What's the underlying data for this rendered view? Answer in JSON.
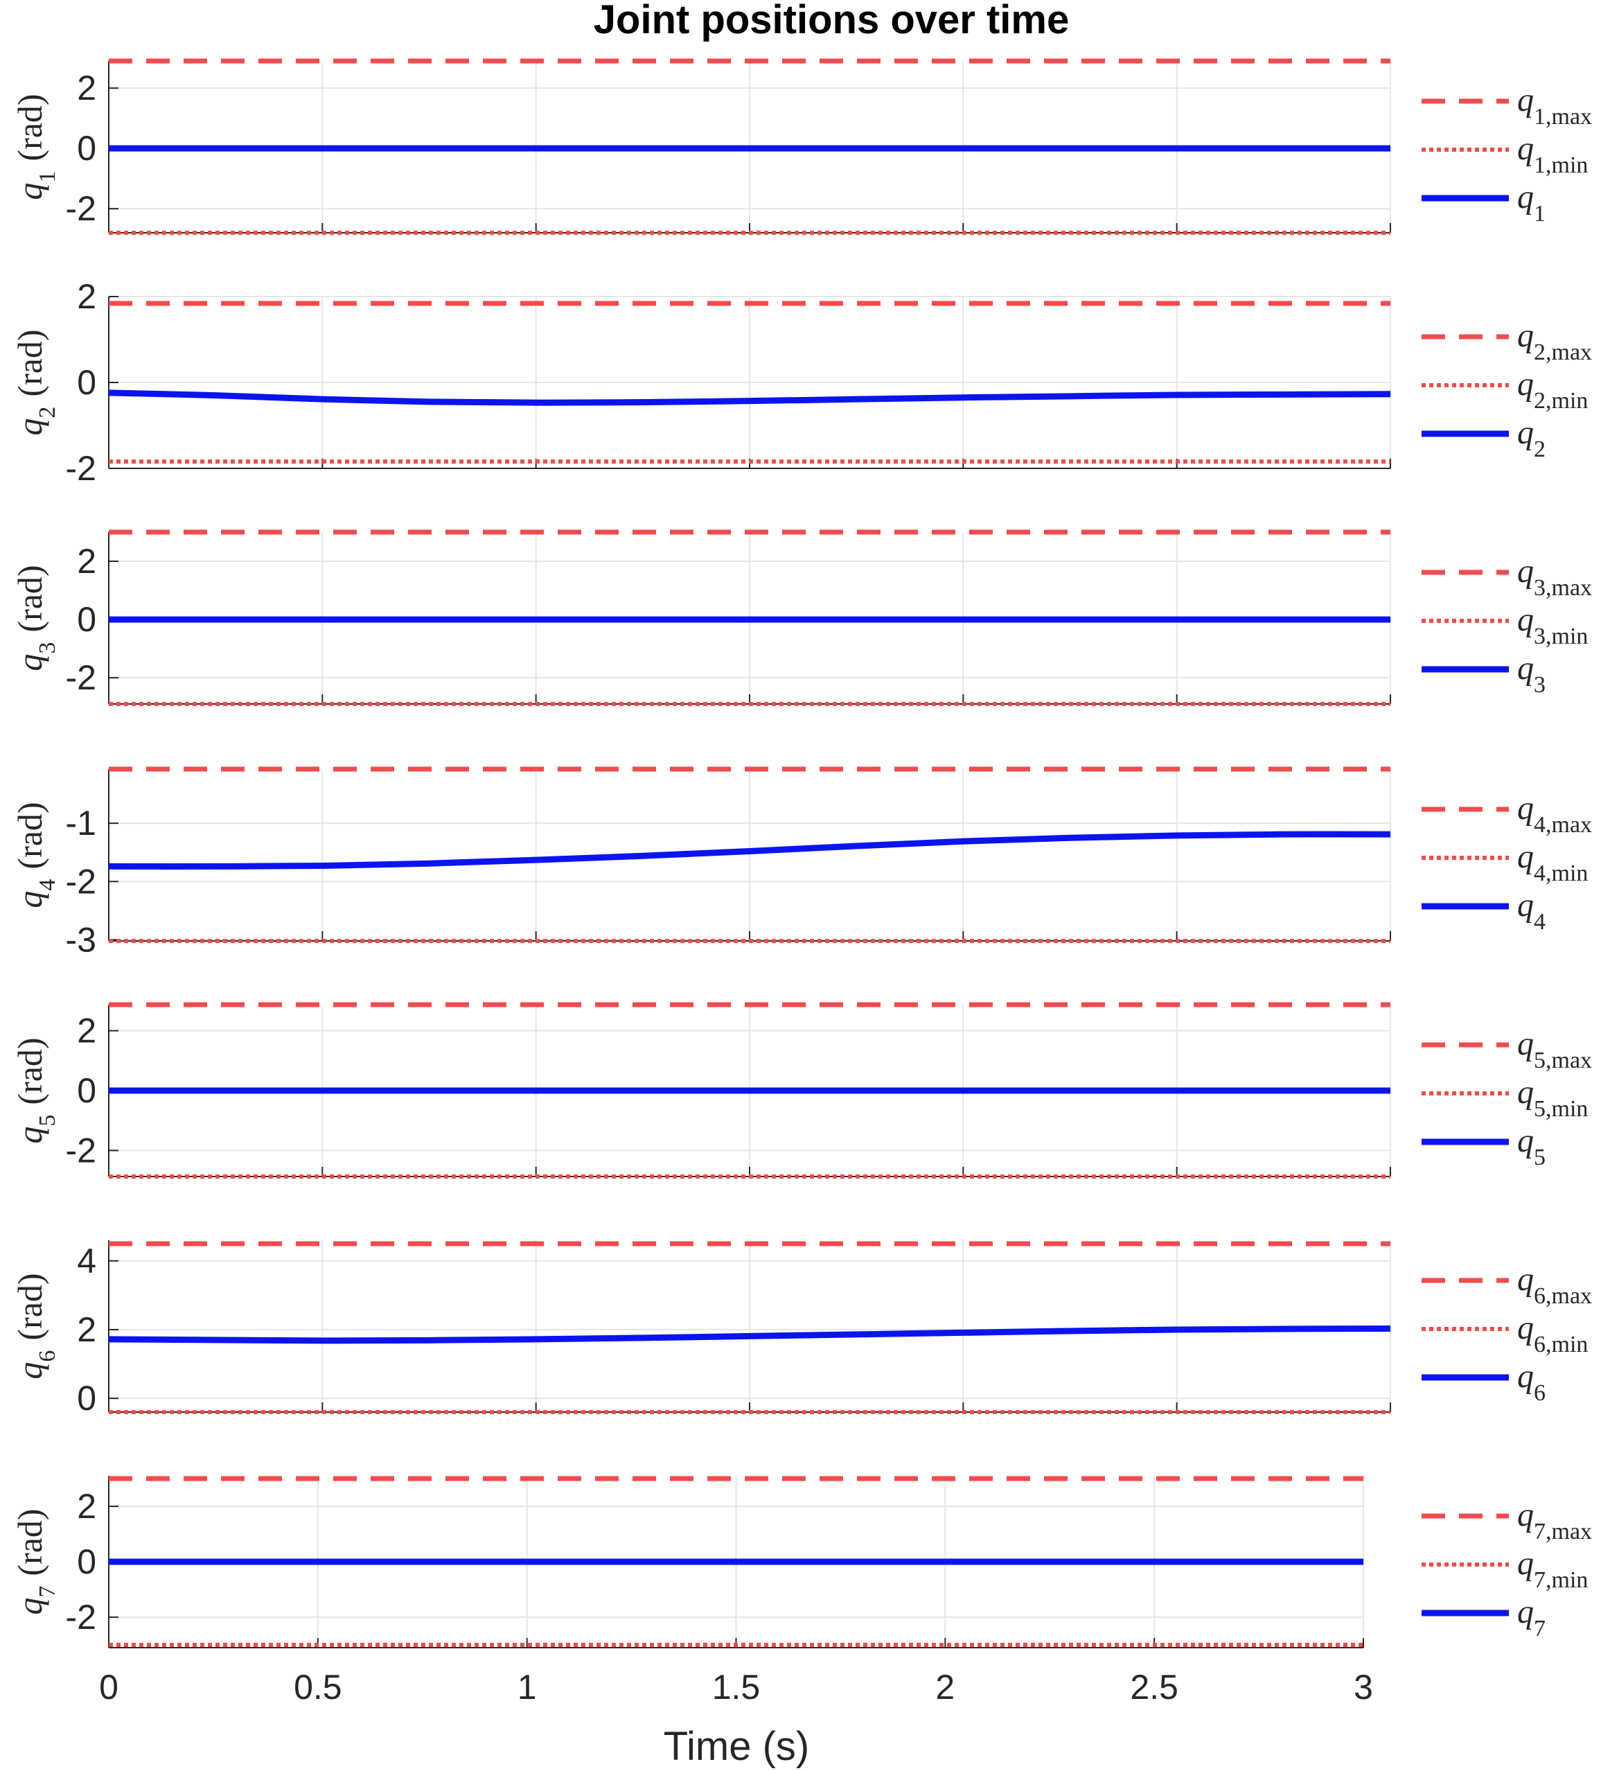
{
  "chart_data": {
    "type": "line",
    "title": "Joint positions over time",
    "xlabel": "Time (s)",
    "xlim": [
      0,
      3
    ],
    "xticks": [
      "0",
      "0.5",
      "1",
      "1.5",
      "2",
      "2.5",
      "3"
    ],
    "x": [
      0,
      0.25,
      0.5,
      0.75,
      1.0,
      1.25,
      1.5,
      1.75,
      2.0,
      2.25,
      2.5,
      2.75,
      3.0
    ],
    "subplots": [
      {
        "ylabel": {
          "var": "q",
          "sub": "1",
          "unit": "(rad)"
        },
        "ylim": [
          -2.8,
          2.9
        ],
        "yticks": [
          {
            "v": -2,
            "label": "-2"
          },
          {
            "v": 0,
            "label": "0"
          },
          {
            "v": 2,
            "label": "2"
          }
        ],
        "q_max": 2.9,
        "q_min": -2.8,
        "values": [
          0,
          0,
          0,
          0,
          0,
          0,
          0,
          0,
          0,
          0,
          0,
          0,
          0
        ],
        "legend": [
          {
            "var": "q",
            "sub": "1,max",
            "style": "dashed"
          },
          {
            "var": "q",
            "sub": "1,min",
            "style": "dotted"
          },
          {
            "var": "q",
            "sub": "1",
            "style": "solid"
          }
        ]
      },
      {
        "ylabel": {
          "var": "q",
          "sub": "2",
          "unit": "(rad)"
        },
        "ylim": [
          -2,
          2
        ],
        "yticks": [
          {
            "v": -2,
            "label": "-2"
          },
          {
            "v": 0,
            "label": "0"
          },
          {
            "v": 2,
            "label": "2"
          }
        ],
        "q_max": 1.84,
        "q_min": -1.84,
        "values": [
          -0.24,
          -0.3,
          -0.39,
          -0.45,
          -0.47,
          -0.46,
          -0.43,
          -0.39,
          -0.35,
          -0.32,
          -0.29,
          -0.28,
          -0.27
        ],
        "legend": [
          {
            "var": "q",
            "sub": "2,max",
            "style": "dashed"
          },
          {
            "var": "q",
            "sub": "2,min",
            "style": "dotted"
          },
          {
            "var": "q",
            "sub": "2",
            "style": "solid"
          }
        ]
      },
      {
        "ylabel": {
          "var": "q",
          "sub": "3",
          "unit": "(rad)"
        },
        "ylim": [
          -2.9,
          3.0
        ],
        "yticks": [
          {
            "v": -2,
            "label": "-2"
          },
          {
            "v": 0,
            "label": "0"
          },
          {
            "v": 2,
            "label": "2"
          }
        ],
        "q_max": 3.0,
        "q_min": -2.9,
        "values": [
          0,
          0,
          0,
          0,
          0,
          0,
          0,
          0,
          0,
          0,
          0,
          0,
          0
        ],
        "legend": [
          {
            "var": "q",
            "sub": "3,max",
            "style": "dashed"
          },
          {
            "var": "q",
            "sub": "3,min",
            "style": "dotted"
          },
          {
            "var": "q",
            "sub": "3",
            "style": "solid"
          }
        ]
      },
      {
        "ylabel": {
          "var": "q",
          "sub": "4",
          "unit": "(rad)"
        },
        "ylim": [
          -3.02,
          -0.07
        ],
        "yticks": [
          {
            "v": -3,
            "label": "-3"
          },
          {
            "v": -2,
            "label": "-2"
          },
          {
            "v": -1,
            "label": "-1"
          }
        ],
        "q_max": -0.07,
        "q_min": -3.02,
        "values": [
          -1.74,
          -1.74,
          -1.73,
          -1.69,
          -1.63,
          -1.56,
          -1.48,
          -1.39,
          -1.31,
          -1.25,
          -1.21,
          -1.19,
          -1.19
        ],
        "legend": [
          {
            "var": "q",
            "sub": "4,max",
            "style": "dashed"
          },
          {
            "var": "q",
            "sub": "4,min",
            "style": "dotted"
          },
          {
            "var": "q",
            "sub": "4",
            "style": "solid"
          }
        ]
      },
      {
        "ylabel": {
          "var": "q",
          "sub": "5",
          "unit": "(rad)"
        },
        "ylim": [
          -2.87,
          2.87
        ],
        "yticks": [
          {
            "v": -2,
            "label": "-2"
          },
          {
            "v": 0,
            "label": "0"
          },
          {
            "v": 2,
            "label": "2"
          }
        ],
        "q_max": 2.87,
        "q_min": -2.87,
        "values": [
          0,
          0,
          0,
          0,
          0,
          0,
          0,
          0,
          0,
          0,
          0,
          0,
          0
        ],
        "legend": [
          {
            "var": "q",
            "sub": "5,max",
            "style": "dashed"
          },
          {
            "var": "q",
            "sub": "5,min",
            "style": "dotted"
          },
          {
            "var": "q",
            "sub": "5",
            "style": "solid"
          }
        ]
      },
      {
        "ylabel": {
          "var": "q",
          "sub": "6",
          "unit": "(rad)"
        },
        "ylim": [
          -0.4,
          4.6
        ],
        "yticks": [
          {
            "v": 0,
            "label": "0"
          },
          {
            "v": 2,
            "label": "2"
          },
          {
            "v": 4,
            "label": "4"
          }
        ],
        "q_max": 4.5,
        "q_min": -0.4,
        "values": [
          1.72,
          1.7,
          1.68,
          1.69,
          1.72,
          1.76,
          1.81,
          1.86,
          1.91,
          1.96,
          2.0,
          2.02,
          2.03
        ],
        "legend": [
          {
            "var": "q",
            "sub": "6,max",
            "style": "dashed"
          },
          {
            "var": "q",
            "sub": "6,min",
            "style": "dotted"
          },
          {
            "var": "q",
            "sub": "6",
            "style": "solid"
          }
        ]
      },
      {
        "ylabel": {
          "var": "q",
          "sub": "7",
          "unit": "(rad)"
        },
        "ylim": [
          -3.1,
          3.1
        ],
        "yticks": [
          {
            "v": -2,
            "label": "-2"
          },
          {
            "v": 0,
            "label": "0"
          },
          {
            "v": 2,
            "label": "2"
          }
        ],
        "q_max": 3.0,
        "q_min": -3.0,
        "values": [
          0,
          0,
          0,
          0,
          0,
          0,
          0,
          0,
          0,
          0,
          0,
          0,
          0
        ],
        "legend": [
          {
            "var": "q",
            "sub": "7,max",
            "style": "dashed"
          },
          {
            "var": "q",
            "sub": "7,min",
            "style": "dotted"
          },
          {
            "var": "q",
            "sub": "7",
            "style": "solid"
          }
        ]
      }
    ]
  },
  "colors": {
    "limit": "#f24b4b",
    "series": "#0a14f0",
    "grid": "#e6e6e6",
    "axis": "#262626"
  }
}
